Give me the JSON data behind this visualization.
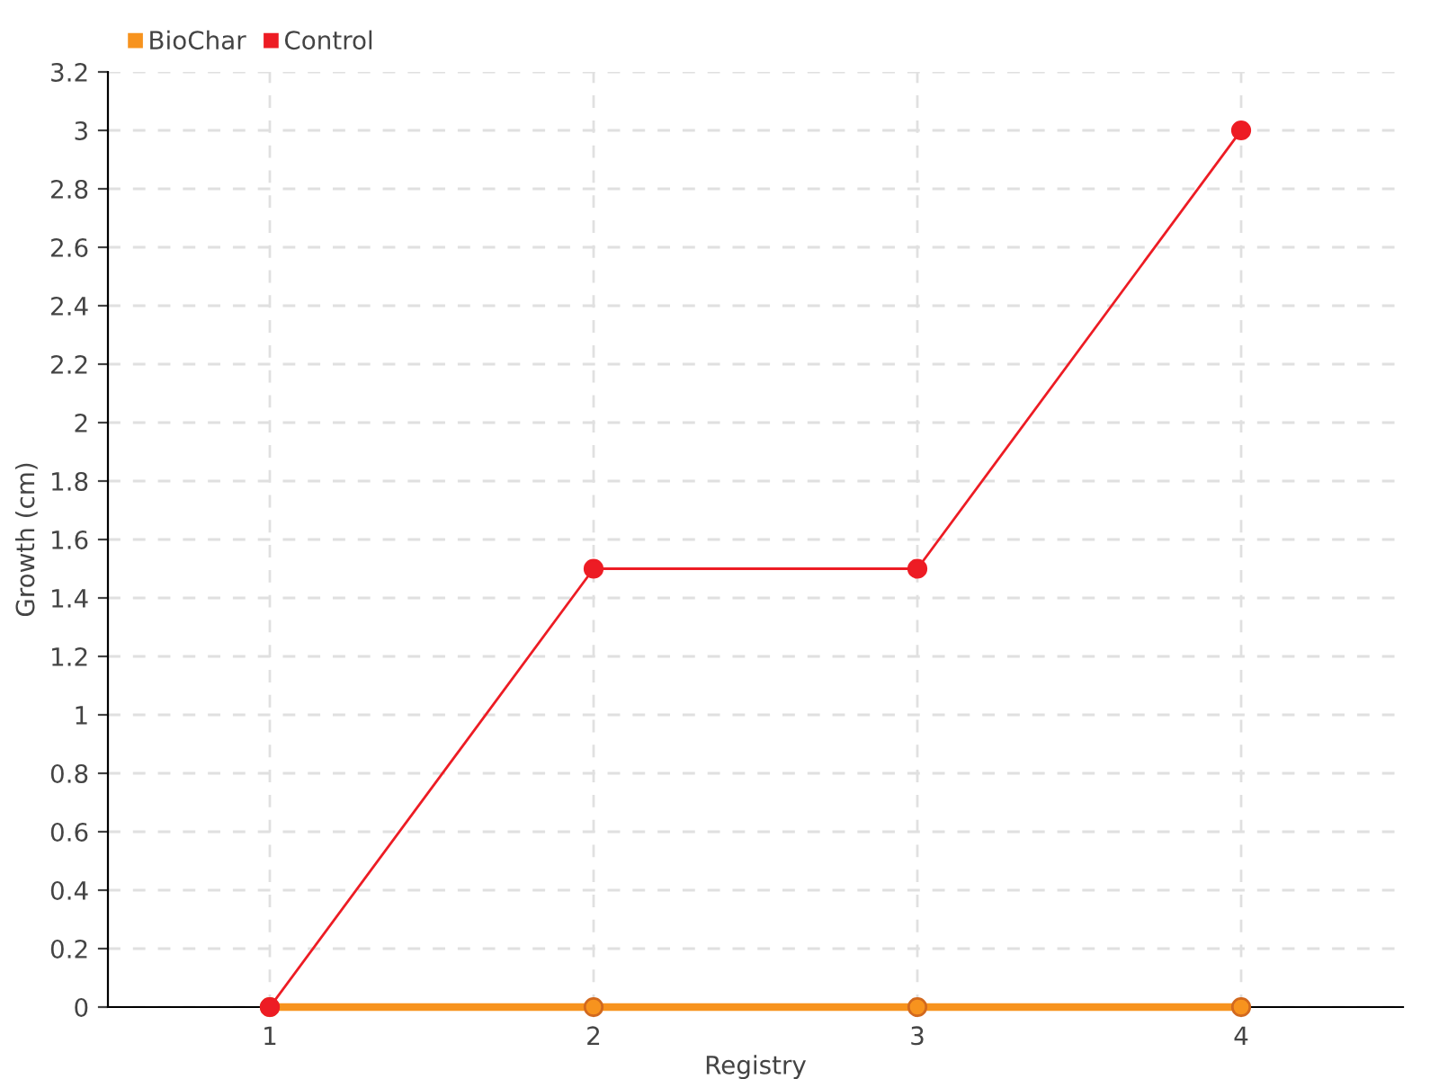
{
  "chart_data": {
    "type": "line",
    "xlabel": "Registry",
    "ylabel": "Growth (cm)",
    "x": [
      1,
      2,
      3,
      4
    ],
    "xlim": [
      0.5,
      4.5
    ],
    "xticks": [
      1,
      2,
      3,
      4
    ],
    "ylim": [
      0,
      3.2
    ],
    "yticks": [
      0,
      0.2,
      0.4,
      0.6,
      0.8,
      1,
      1.2,
      1.4,
      1.6,
      1.8,
      2,
      2.2,
      2.4,
      2.6,
      2.8,
      3,
      3.2
    ],
    "series": [
      {
        "name": "BioChar",
        "color": "#f7931e",
        "values": [
          0,
          0,
          0,
          0
        ]
      },
      {
        "name": "Control",
        "color": "#ed1c24",
        "values": [
          0,
          1.5,
          1.5,
          3
        ]
      }
    ],
    "marker": "circle",
    "line_style": "solid",
    "grid": true,
    "legend": "top left"
  }
}
